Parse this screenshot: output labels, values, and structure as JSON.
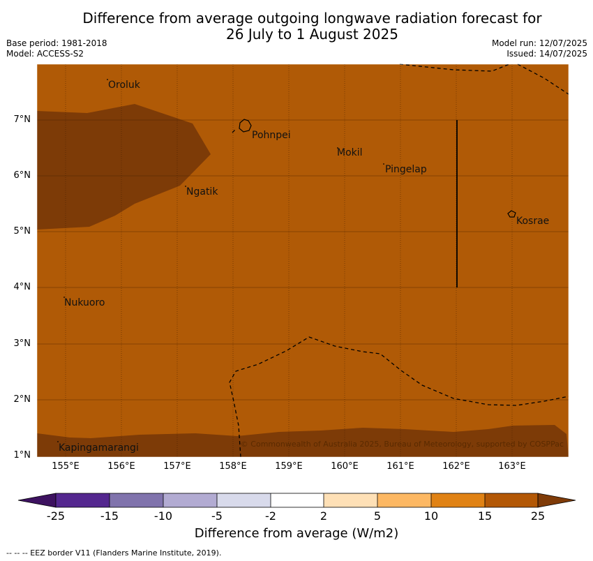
{
  "header": {
    "title_line1": "Difference from average outgoing longwave radiation forecast for",
    "title_line2": "26 July to 1 August 2025",
    "base_period": "Base period: 1981-2018",
    "model": "Model: ACCESS-S2",
    "model_run": "Model run: 12/07/2025",
    "issued": "Issued: 14/07/2025"
  },
  "map": {
    "latitude_labels": [
      "7°N",
      "6°N",
      "5°N",
      "4°N",
      "3°N",
      "2°N",
      "1°N"
    ],
    "longitude_labels": [
      "155°E",
      "156°E",
      "157°E",
      "158°E",
      "159°E",
      "160°E",
      "161°E",
      "162°E",
      "163°E"
    ],
    "places": [
      "Oroluk",
      "Pohnpei",
      "Mokil",
      "Pingelap",
      "Ngatik",
      "Kosrae",
      "Nukuoro",
      "Kapingamarangi"
    ],
    "copyright": "© Commonwealth of Australia 2025, Bureau of Meteorology, supported by COSPPac",
    "colors": {
      "range_15_25": "#b05a06",
      "range_25_plus": "#7d3b07"
    }
  },
  "colorbar": {
    "ticks": [
      "-25",
      "-15",
      "-10",
      "-5",
      "-2",
      "2",
      "5",
      "10",
      "15",
      "25"
    ],
    "colors": [
      "#3d1260",
      "#54278f",
      "#8073ac",
      "#b2abd2",
      "#d8daeb",
      "#ffffff",
      "#fee0b6",
      "#fdb863",
      "#e08214",
      "#b35806",
      "#7f3b08"
    ],
    "title": "Difference from average (W/m2)"
  },
  "footer": {
    "legend_text": "--  --  -- EEZ border V11 (Flanders Marine Institute, 2019)."
  }
}
